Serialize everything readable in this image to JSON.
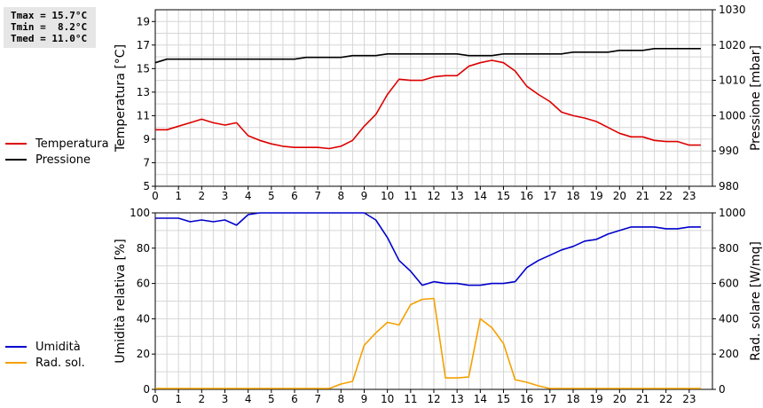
{
  "stats": {
    "tmax": "Tmax = 15.7°C",
    "tmin": "Tmin =  8.2°C",
    "tmed": "Tmed = 11.0°C"
  },
  "colors": {
    "temperature": "#dd0000",
    "pressure": "#000000",
    "humidity": "#0000cc",
    "radiation": "#f5a000",
    "grid": "#d6d6d6"
  },
  "chart_data": [
    {
      "type": "line",
      "ylabel": "Temperatura [°C]",
      "y2label": "Pressione [mbar]",
      "ylim": [
        5,
        20
      ],
      "yticks": [
        5,
        7,
        9,
        11,
        13,
        15,
        17,
        19
      ],
      "y2lim": [
        980,
        1030
      ],
      "y2ticks": [
        980,
        990,
        1000,
        1010,
        1020,
        1030
      ],
      "xlim": [
        0,
        24
      ],
      "xticks": [
        0,
        1,
        2,
        3,
        4,
        5,
        6,
        7,
        8,
        9,
        10,
        11,
        12,
        13,
        14,
        15,
        16,
        17,
        18,
        19,
        20,
        21,
        22,
        23
      ],
      "grid": true,
      "legend_position": "left",
      "series": [
        {
          "name": "Temperatura",
          "axis": "left",
          "x": [
            0,
            0.5,
            1,
            1.5,
            2,
            2.5,
            3,
            3.5,
            4,
            4.5,
            5,
            5.5,
            6,
            6.5,
            7,
            7.5,
            8,
            8.5,
            9,
            9.5,
            10,
            10.5,
            11,
            11.5,
            12,
            12.5,
            13,
            13.5,
            14,
            14.5,
            15,
            15.5,
            16,
            16.5,
            17,
            17.5,
            18,
            18.5,
            19,
            19.5,
            20,
            20.5,
            21,
            21.5,
            22,
            22.5,
            23,
            23.5
          ],
          "y": [
            9.8,
            9.8,
            10.1,
            10.4,
            10.7,
            10.4,
            10.2,
            10.4,
            9.3,
            8.9,
            8.6,
            8.4,
            8.3,
            8.3,
            8.3,
            8.2,
            8.4,
            8.9,
            10.1,
            11.1,
            12.8,
            14.1,
            14.0,
            14.0,
            14.3,
            14.4,
            14.4,
            15.2,
            15.5,
            15.7,
            15.5,
            14.8,
            13.5,
            12.8,
            12.2,
            11.3,
            11.0,
            10.8,
            10.5,
            10.0,
            9.5,
            9.2,
            9.2,
            8.9,
            8.8,
            8.8,
            8.5,
            8.5
          ]
        },
        {
          "name": "Pressione",
          "axis": "right",
          "x": [
            0,
            0.5,
            1,
            1.5,
            2,
            2.5,
            3,
            3.5,
            4,
            4.5,
            5,
            5.5,
            6,
            6.5,
            7,
            7.5,
            8,
            8.5,
            9,
            9.5,
            10,
            10.5,
            11,
            11.5,
            12,
            12.5,
            13,
            13.5,
            14,
            14.5,
            15,
            15.5,
            16,
            16.5,
            17,
            17.5,
            18,
            18.5,
            19,
            19.5,
            20,
            20.5,
            21,
            21.5,
            22,
            22.5,
            23,
            23.5
          ],
          "y": [
            1015,
            1016,
            1016,
            1016,
            1016,
            1016,
            1016,
            1016,
            1016,
            1016,
            1016,
            1016,
            1016,
            1016.5,
            1016.5,
            1016.5,
            1016.5,
            1017,
            1017,
            1017,
            1017.5,
            1017.5,
            1017.5,
            1017.5,
            1017.5,
            1017.5,
            1017.5,
            1017,
            1017,
            1017,
            1017.5,
            1017.5,
            1017.5,
            1017.5,
            1017.5,
            1017.5,
            1018,
            1018,
            1018,
            1018,
            1018.5,
            1018.5,
            1018.5,
            1019,
            1019,
            1019,
            1019,
            1019
          ]
        }
      ]
    },
    {
      "type": "line",
      "ylabel": "Umidità relativa [%]",
      "y2label": "Rad. solare [W/mq]",
      "ylim": [
        0,
        100
      ],
      "yticks": [
        0,
        20,
        40,
        60,
        80,
        100
      ],
      "y2lim": [
        0,
        1000
      ],
      "y2ticks": [
        0,
        200,
        400,
        600,
        800,
        1000
      ],
      "xlim": [
        0,
        24
      ],
      "xticks": [
        0,
        1,
        2,
        3,
        4,
        5,
        6,
        7,
        8,
        9,
        10,
        11,
        12,
        13,
        14,
        15,
        16,
        17,
        18,
        19,
        20,
        21,
        22,
        23
      ],
      "grid": true,
      "legend_position": "left",
      "series": [
        {
          "name": "Umidità",
          "axis": "left",
          "x": [
            0,
            0.5,
            1,
            1.5,
            2,
            2.5,
            3,
            3.5,
            4,
            4.5,
            5,
            5.5,
            6,
            6.5,
            7,
            7.5,
            8,
            8.5,
            9,
            9.5,
            10,
            10.5,
            11,
            11.5,
            12,
            12.5,
            13,
            13.5,
            14,
            14.5,
            15,
            15.5,
            16,
            16.5,
            17,
            17.5,
            18,
            18.5,
            19,
            19.5,
            20,
            20.5,
            21,
            21.5,
            22,
            22.5,
            23,
            23.5
          ],
          "y": [
            97,
            97,
            97,
            95,
            96,
            95,
            96,
            93,
            99,
            100,
            100,
            100,
            100,
            100,
            100,
            100,
            100,
            100,
            100,
            96,
            86,
            73,
            67,
            59,
            61,
            60,
            60,
            59,
            59,
            60,
            60,
            61,
            69,
            73,
            76,
            79,
            81,
            84,
            85,
            88,
            90,
            92,
            92,
            92,
            91,
            91,
            92,
            92
          ]
        },
        {
          "name": "Rad. sol.",
          "axis": "right",
          "x": [
            0,
            0.5,
            1,
            1.5,
            2,
            2.5,
            3,
            3.5,
            4,
            4.5,
            5,
            5.5,
            6,
            6.5,
            7,
            7.5,
            8,
            8.5,
            9,
            9.5,
            10,
            10.5,
            11,
            11.5,
            12,
            12.5,
            13,
            13.5,
            14,
            14.5,
            15,
            15.5,
            16,
            16.5,
            17,
            17.5,
            18,
            18.5,
            19,
            19.5,
            20,
            20.5,
            21,
            21.5,
            22,
            22.5,
            23,
            23.5
          ],
          "y": [
            5,
            5,
            5,
            5,
            5,
            5,
            5,
            5,
            5,
            5,
            5,
            5,
            5,
            5,
            5,
            5,
            30,
            45,
            250,
            320,
            380,
            365,
            480,
            510,
            515,
            65,
            65,
            70,
            400,
            350,
            260,
            55,
            40,
            20,
            5,
            5,
            5,
            5,
            5,
            5,
            5,
            5,
            5,
            5,
            5,
            5,
            5,
            5
          ]
        }
      ]
    }
  ]
}
